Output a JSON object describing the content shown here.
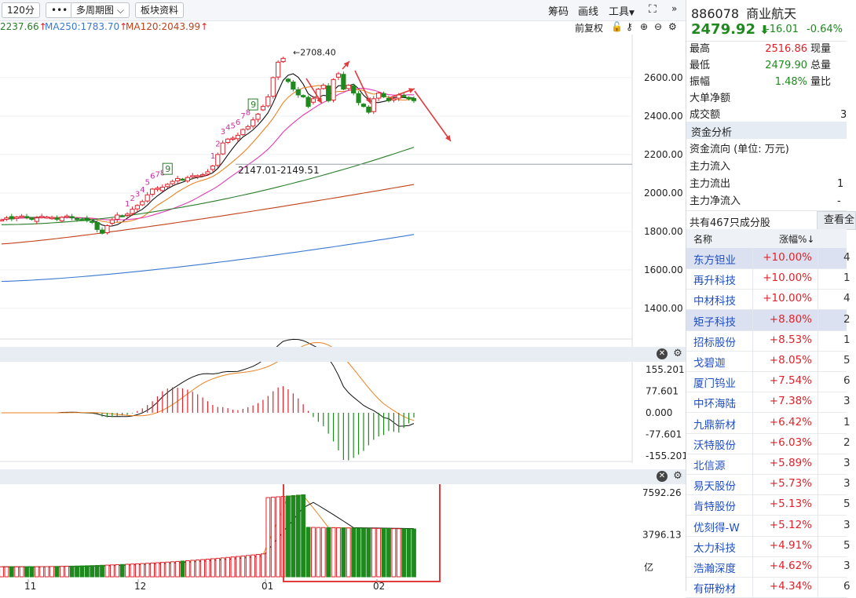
{
  "toolbar": {
    "period": "120分",
    "more": "•••",
    "multi_period": "多周期图",
    "sector_info": "板块资料",
    "chip": "筹码",
    "draw": "画线",
    "tools": "工具"
  },
  "ma": {
    "first_value": "2237.66",
    "ma250": "MA250:1783.70",
    "ma120": "MA120:2043.99",
    "adjust": "前复权"
  },
  "chart_labels": {
    "high_marker": "2708.40",
    "range_marker": "2147.01-2149.51",
    "price_ticks": [
      "2600.00",
      "2400.00",
      "2200.00",
      "2000.00",
      "1800.00",
      "1600.00",
      "1400.00"
    ],
    "macd_ticks": [
      "155.201",
      "77.601",
      "0.000",
      "-77.601",
      "-155.201"
    ],
    "vol_ticks": [
      "7592.26",
      "3796.13"
    ],
    "vol_unit": "亿",
    "x_ticks": [
      "11",
      "12",
      "01",
      "02"
    ],
    "td_counts": [
      "1",
      "2",
      "3",
      "4",
      "5",
      "6",
      "7",
      "8",
      "9"
    ]
  },
  "colors": {
    "up": "#e1222b",
    "down": "#1e8a1e",
    "ma5": "#111111",
    "ma10": "#e98221",
    "ma20": "#e23bb3",
    "ma60": "#2a7d2a",
    "ma120": "#c2411a",
    "ma250": "#3a78d3",
    "highlight": "#e03c3c"
  },
  "quote": {
    "code": "886078",
    "name": "商业航天",
    "price": "2479.92",
    "change": "-16.01",
    "change_pct": "-0.64%"
  },
  "stats": [
    {
      "label": "最高",
      "value": "2516.86",
      "label2": "现量"
    },
    {
      "label": "最低",
      "value": "2479.90",
      "label2": "总量"
    },
    {
      "label": "振幅",
      "value": "1.48%",
      "label2": "量比"
    },
    {
      "label": "大单净额",
      "value": "",
      "label2": ""
    },
    {
      "label": "成交额",
      "value": "",
      "label2": "3"
    }
  ],
  "fund": {
    "header": "资金分析",
    "flow": "资金流向 (单位: 万元)",
    "inflow": "主力流入",
    "outflow": "主力流出",
    "outflow_tail": "1",
    "net": "主力净流入",
    "net_tail": "-"
  },
  "constituents": {
    "summary": "共有467只成分股",
    "view_btn": "查看全",
    "col_name": "名称",
    "col_pct": "涨幅%↓",
    "rows": [
      {
        "name": "东方钽业",
        "pct": "+10.00%",
        "extra": "4"
      },
      {
        "name": "再升科技",
        "pct": "+10.00%",
        "extra": "1"
      },
      {
        "name": "中材科技",
        "pct": "+10.00%",
        "extra": "4"
      },
      {
        "name": "矩子科技",
        "pct": "+8.80%",
        "extra": "2"
      },
      {
        "name": "招标股份",
        "pct": "+8.53%",
        "extra": "1"
      },
      {
        "name": "戈碧迦",
        "pct": "+8.05%",
        "extra": "5"
      },
      {
        "name": "厦门钨业",
        "pct": "+7.54%",
        "extra": "6"
      },
      {
        "name": "中环海陆",
        "pct": "+7.38%",
        "extra": "3"
      },
      {
        "name": "九鼎新材",
        "pct": "+6.42%",
        "extra": "1"
      },
      {
        "name": "沃特股份",
        "pct": "+6.03%",
        "extra": "2"
      },
      {
        "name": "北信源",
        "pct": "+5.89%",
        "extra": "3"
      },
      {
        "name": "易天股份",
        "pct": "+5.73%",
        "extra": "3"
      },
      {
        "name": "肯特股份",
        "pct": "+5.13%",
        "extra": "5"
      },
      {
        "name": "优刻得-W",
        "pct": "+5.12%",
        "extra": "3"
      },
      {
        "name": "太力科技",
        "pct": "+4.91%",
        "extra": "5"
      },
      {
        "name": "浩瀚深度",
        "pct": "+4.62%",
        "extra": "3"
      },
      {
        "name": "有研粉材",
        "pct": "+4.34%",
        "extra": "6"
      }
    ]
  },
  "chart_data": {
    "type": "candlestick",
    "x_axis_ticks": [
      "11",
      "12",
      "01",
      "02"
    ],
    "y_ticks": [
      2600,
      2400,
      2200,
      2000,
      1800,
      1600,
      1400
    ],
    "ylim": [
      1240,
      2820
    ],
    "close_series": [
      1860,
      1870,
      1865,
      1875,
      1880,
      1872,
      1868,
      1870,
      1878,
      1875,
      1872,
      1868,
      1873,
      1880,
      1870,
      1865,
      1860,
      1856,
      1850,
      1810,
      1790,
      1830,
      1860,
      1885,
      1880,
      1890,
      1915,
      1935,
      1955,
      1990,
      2020,
      2025,
      2030,
      2045,
      2060,
      2075,
      2070,
      2080,
      2090,
      2090,
      2095,
      2110,
      2140,
      2200,
      2260,
      2280,
      2285,
      2300,
      2330,
      2345,
      2380,
      2410,
      2450,
      2500,
      2600,
      2680,
      2700,
      2580,
      2540,
      2510,
      2500,
      2450,
      2490,
      2540,
      2560,
      2480,
      2590,
      2620,
      2540,
      2560,
      2520,
      2470,
      2450,
      2420,
      2490,
      2520,
      2500,
      2480,
      2490,
      2510,
      2500,
      2490,
      2480
    ],
    "ma_end_values": {
      "ma60": 2237.66,
      "ma120": 2043.99,
      "ma250": 1783.7
    },
    "macd_range": [
      -155.201,
      155.201
    ],
    "volume_max": 7592.26,
    "annotations": [
      "2708.40",
      "2147.01-2149.51"
    ]
  }
}
